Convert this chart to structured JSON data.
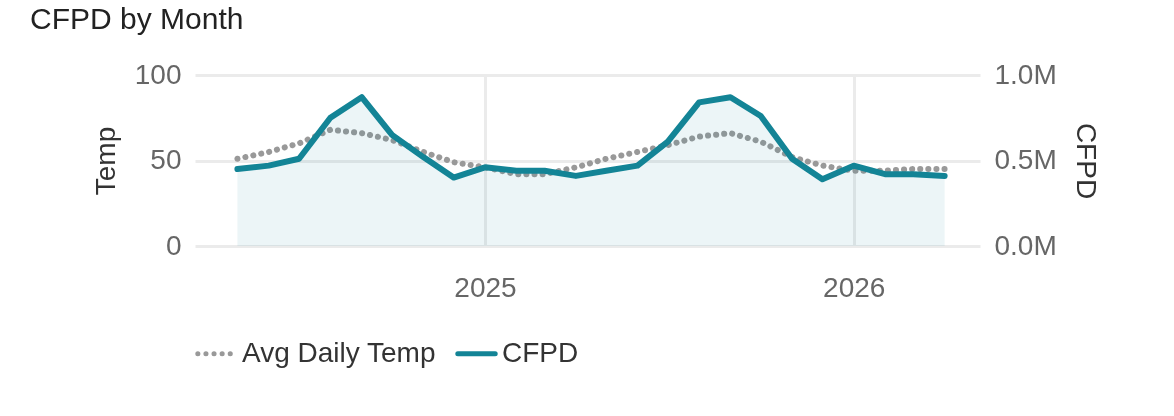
{
  "chart_data": {
    "type": "line",
    "title": "CFPD by Month",
    "ylabel": "Temp",
    "y2label": "CFPD",
    "x": [
      "2024-05",
      "2024-06",
      "2024-07",
      "2024-08",
      "2024-09",
      "2024-10",
      "2024-11",
      "2024-12",
      "2025-01",
      "2025-02",
      "2025-03",
      "2025-04",
      "2025-05",
      "2025-06",
      "2025-07",
      "2025-08",
      "2025-09",
      "2025-10",
      "2025-11",
      "2025-12",
      "2026-01",
      "2026-02",
      "2026-03",
      "2026-04"
    ],
    "xlim": [
      "2024-03-20",
      "2026-05-06"
    ],
    "xticks": [
      {
        "value": "2025",
        "label": "2025"
      },
      {
        "value": "2026",
        "label": "2026"
      }
    ],
    "ylim": [
      0,
      100
    ],
    "yticks": [
      0,
      50,
      100
    ],
    "y2lim": [
      0,
      1000000
    ],
    "y2ticks": [
      {
        "value": 0,
        "label": "0.0M"
      },
      {
        "value": 500000,
        "label": "0.5M"
      },
      {
        "value": 1000000,
        "label": "1.0M"
      }
    ],
    "grid": true,
    "legend": "bottom",
    "series": [
      {
        "name": "Avg Daily Temp",
        "type": "line",
        "line_style": "dotted",
        "color": "#999999",
        "values": [
          51,
          55,
          60,
          68,
          66,
          62,
          55,
          49,
          46,
          42,
          42,
          46,
          51,
          55,
          59,
          64,
          66,
          61,
          52,
          47,
          44,
          44,
          45,
          45
        ]
      },
      {
        "name": "CFPD",
        "type": "area",
        "axis": "y2",
        "line_style": "solid",
        "color": "#138496",
        "values": [
          450000,
          470000,
          510000,
          750000,
          870000,
          650000,
          520000,
          400000,
          460000,
          440000,
          440000,
          410000,
          440000,
          470000,
          610000,
          840000,
          870000,
          760000,
          510000,
          390000,
          470000,
          420000,
          420000,
          410000
        ]
      }
    ]
  }
}
